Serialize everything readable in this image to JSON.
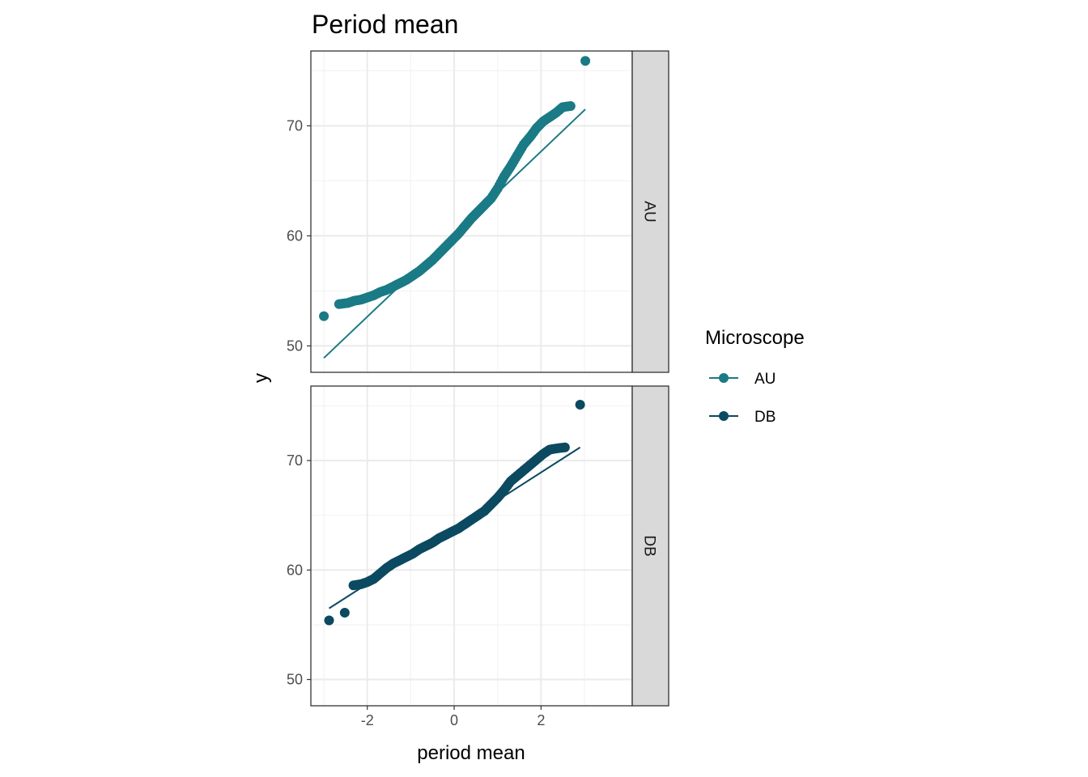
{
  "chart_data": {
    "type": "scatter",
    "title": "Period mean",
    "xlabel": "period mean",
    "ylabel": "y",
    "xlim": [
      -3.3,
      4.1
    ],
    "ylim": [
      47.6,
      76.8
    ],
    "x_ticks": [
      -2,
      0,
      2
    ],
    "x_tick_labels": [
      "-2",
      "0",
      "2"
    ],
    "y_ticks": [
      50,
      60,
      70
    ],
    "y_tick_labels": [
      "50",
      "60",
      "70"
    ],
    "grid": true,
    "legend": {
      "title": "Microscope",
      "position": "right"
    },
    "facets": [
      "AU",
      "DB"
    ],
    "series": [
      {
        "name": "AU",
        "color": "#1a7a85",
        "points": [
          [
            -3.0,
            52.7
          ],
          [
            -2.65,
            53.8
          ],
          [
            -2.45,
            53.9
          ],
          [
            -2.3,
            54.1
          ],
          [
            -2.15,
            54.2
          ],
          [
            -2.0,
            54.4
          ],
          [
            -1.85,
            54.6
          ],
          [
            -1.7,
            54.9
          ],
          [
            -1.55,
            55.1
          ],
          [
            -1.4,
            55.4
          ],
          [
            -1.25,
            55.7
          ],
          [
            -1.1,
            56.0
          ],
          [
            -0.95,
            56.4
          ],
          [
            -0.8,
            56.8
          ],
          [
            -0.65,
            57.3
          ],
          [
            -0.5,
            57.8
          ],
          [
            -0.35,
            58.4
          ],
          [
            -0.2,
            59.0
          ],
          [
            -0.05,
            59.6
          ],
          [
            0.1,
            60.2
          ],
          [
            0.25,
            60.9
          ],
          [
            0.4,
            61.6
          ],
          [
            0.55,
            62.2
          ],
          [
            0.7,
            62.8
          ],
          [
            0.85,
            63.4
          ],
          [
            1.0,
            64.3
          ],
          [
            1.15,
            65.4
          ],
          [
            1.3,
            66.3
          ],
          [
            1.45,
            67.3
          ],
          [
            1.6,
            68.3
          ],
          [
            1.75,
            69.0
          ],
          [
            1.9,
            69.8
          ],
          [
            2.05,
            70.4
          ],
          [
            2.2,
            70.8
          ],
          [
            2.35,
            71.2
          ],
          [
            2.5,
            71.7
          ],
          [
            2.68,
            71.8
          ],
          [
            3.02,
            75.9
          ]
        ],
        "line": {
          "x": [
            -3.0,
            3.02
          ],
          "y": [
            48.9,
            71.5
          ]
        }
      },
      {
        "name": "DB",
        "color": "#0b4a60",
        "points": [
          [
            -2.88,
            55.4
          ],
          [
            -2.52,
            56.1
          ],
          [
            -2.32,
            58.6
          ],
          [
            -2.15,
            58.7
          ],
          [
            -2.0,
            58.9
          ],
          [
            -1.85,
            59.2
          ],
          [
            -1.7,
            59.7
          ],
          [
            -1.55,
            60.2
          ],
          [
            -1.4,
            60.6
          ],
          [
            -1.25,
            60.9
          ],
          [
            -1.1,
            61.2
          ],
          [
            -0.95,
            61.5
          ],
          [
            -0.8,
            61.9
          ],
          [
            -0.65,
            62.2
          ],
          [
            -0.5,
            62.5
          ],
          [
            -0.35,
            62.9
          ],
          [
            -0.2,
            63.2
          ],
          [
            -0.05,
            63.5
          ],
          [
            0.1,
            63.8
          ],
          [
            0.25,
            64.2
          ],
          [
            0.4,
            64.6
          ],
          [
            0.55,
            65.0
          ],
          [
            0.7,
            65.4
          ],
          [
            0.85,
            66.0
          ],
          [
            1.0,
            66.6
          ],
          [
            1.15,
            67.3
          ],
          [
            1.3,
            68.1
          ],
          [
            1.45,
            68.6
          ],
          [
            1.6,
            69.1
          ],
          [
            1.75,
            69.6
          ],
          [
            1.9,
            70.1
          ],
          [
            2.05,
            70.6
          ],
          [
            2.2,
            71.0
          ],
          [
            2.35,
            71.1
          ],
          [
            2.55,
            71.2
          ],
          [
            2.9,
            75.1
          ]
        ],
        "line": {
          "x": [
            -2.88,
            2.9
          ],
          "y": [
            56.5,
            71.2
          ]
        }
      }
    ]
  }
}
